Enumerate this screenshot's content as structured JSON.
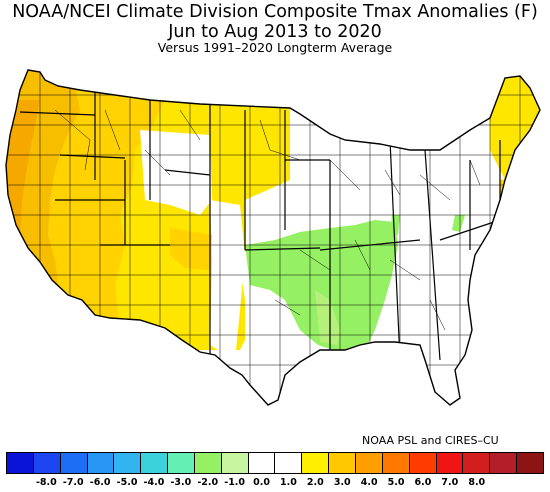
{
  "title": {
    "line1": "NOAA/NCEI Climate Division Composite Tmax Anomalies (F)",
    "line2": "Jun to Aug 2013 to 2020",
    "line3": "Versus 1991–2020 Longterm Average"
  },
  "credit": "NOAA PSL and CIRES–CU",
  "legend": {
    "labels": [
      "-8.0",
      "-7.0",
      "-6.0",
      "-5.0",
      "-4.0",
      "-3.0",
      "-2.0",
      "-1.0",
      "0.0",
      "1.0",
      "2.0",
      "3.0",
      "4.0",
      "5.0",
      "6.0",
      "7.0",
      "8.0"
    ],
    "colors": [
      "#0a14d8",
      "#1e46f0",
      "#1e6ef5",
      "#2896f5",
      "#32b4f0",
      "#3cd2dc",
      "#64f0b4",
      "#96f064",
      "#c8f5a0",
      "#ffffff",
      "#ffffff",
      "#fff000",
      "#ffc800",
      "#ffa000",
      "#ff7800",
      "#ff3c00",
      "#f01414",
      "#d21e1e",
      "#b41e28",
      "#8c1414"
    ]
  },
  "map": {
    "region": "Contiguous United States, climate divisions",
    "region_colors": {
      "west_coast": "#f5b400",
      "west": "#ffd200",
      "west_interior": "#ffe600",
      "north_plains": "#ffe600",
      "neutral": "#ffffff",
      "south_central": "#96f064",
      "northeast": "#ffe600"
    }
  }
}
